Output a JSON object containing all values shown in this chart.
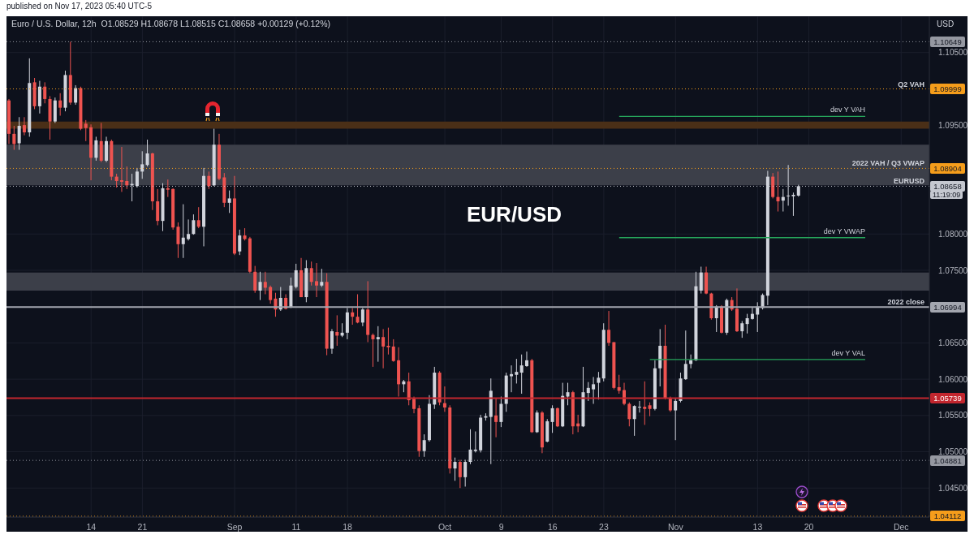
{
  "chart_data": {
    "type": "candlestick",
    "title": "Euro / U.S. Dollar, 12h",
    "subtitle": "O1.08529 H1.08678 L1.08515 C1.08658 +0.00129 (+0.12%)",
    "ylabel": "USD",
    "annotations": [
      "published on Nov 17, 2023 05:40 UTC-5",
      "EUR/USD",
      "11:19:09",
      {
        "text": "1.10649",
        "y": 1.10649
      },
      {
        "text": "1.09999",
        "y": 1.09999
      },
      {
        "text": "1.08904",
        "y": 1.08904
      },
      {
        "text": "1.08658",
        "y": 1.08658
      },
      {
        "text": "1.06994",
        "y": 1.06994
      },
      {
        "text": "1.05739",
        "y": 1.05739
      },
      {
        "text": "1.04881",
        "y": 1.04881
      },
      {
        "text": "1.04112",
        "y": 1.04112
      }
    ],
    "categories": [
      null,
      null,
      null,
      null,
      null,
      null,
      null,
      null,
      null,
      null,
      null,
      null,
      null,
      null,
      null,
      null,
      "14",
      null,
      null,
      null,
      null,
      null,
      null,
      null,
      null,
      null,
      "21",
      null,
      null,
      null,
      null,
      null,
      null,
      null,
      null,
      null,
      null,
      null,
      null,
      null,
      null,
      null,
      null,
      null,
      "Sep",
      null,
      null,
      null,
      null,
      null,
      null,
      null,
      null,
      null,
      null,
      null,
      "11",
      null,
      null,
      null,
      null,
      null,
      null,
      null,
      null,
      null,
      "18",
      null,
      null,
      null,
      null,
      null,
      null,
      null,
      null,
      null,
      null,
      null,
      null,
      null,
      null,
      null,
      null,
      null,
      null,
      "Oct",
      null,
      null,
      null,
      null,
      null,
      null,
      null,
      null,
      null,
      null,
      "9",
      null,
      null,
      null,
      null,
      null,
      null,
      null,
      null,
      null,
      "16",
      null,
      null,
      null,
      null,
      null,
      null,
      null,
      null,
      null,
      "23",
      null,
      null,
      null,
      null,
      null,
      null,
      null,
      null,
      null,
      null,
      null,
      null,
      null,
      "Nov",
      null,
      null,
      null,
      null,
      null,
      null,
      null,
      null,
      null,
      null,
      null,
      null,
      null,
      null,
      null,
      "13",
      null,
      null,
      null,
      null,
      null,
      null,
      null,
      null,
      null,
      "20",
      null,
      null,
      null,
      null,
      null,
      null,
      null,
      null,
      null,
      null,
      null,
      null,
      null,
      null,
      null,
      null,
      null,
      "Dec",
      null,
      null,
      null,
      null,
      null
    ],
    "ohlc": [
      [
        1.0984,
        1.0986,
        1.0924,
        1.0938
      ],
      [
        1.0938,
        1.0949,
        1.0916,
        1.0924
      ],
      [
        1.0925,
        1.0961,
        1.0916,
        1.0949
      ],
      [
        1.095,
        1.0961,
        1.0936,
        1.094
      ],
      [
        1.094,
        1.1042,
        1.0934,
        1.1008
      ],
      [
        1.1009,
        1.1015,
        1.0972,
        1.0976
      ],
      [
        1.0976,
        1.1011,
        1.0966,
        1.1003
      ],
      [
        1.1003,
        1.1009,
        1.098,
        1.0986
      ],
      [
        1.0986,
        1.099,
        1.093,
        1.0955
      ],
      [
        1.0955,
        1.0988,
        1.0953,
        1.0984
      ],
      [
        1.0984,
        1.0994,
        1.0963,
        1.0974
      ],
      [
        1.0974,
        1.1025,
        1.0969,
        1.1019
      ],
      [
        1.1019,
        1.1065,
        1.0978,
        1.0981
      ],
      [
        1.0981,
        1.1005,
        1.0978,
        1.1001
      ],
      [
        1.1001,
        1.1003,
        1.0943,
        1.0945
      ],
      [
        1.0952,
        1.0957,
        1.0928,
        1.0946
      ],
      [
        1.0947,
        1.0951,
        1.0874,
        1.0905
      ],
      [
        1.0905,
        1.0934,
        1.0901,
        1.0929
      ],
      [
        1.0928,
        1.0953,
        1.0899,
        1.0901
      ],
      [
        1.0901,
        1.0934,
        1.0899,
        1.0928
      ],
      [
        1.0928,
        1.093,
        1.0874,
        1.0879
      ],
      [
        1.0879,
        1.0883,
        1.0864,
        1.0873
      ],
      [
        1.0874,
        1.092,
        1.0858,
        1.0872
      ],
      [
        1.0873,
        1.0893,
        1.0862,
        1.0867
      ],
      [
        1.0867,
        1.0883,
        1.0845,
        1.0869
      ],
      [
        1.0866,
        1.0891,
        1.0864,
        1.0886
      ],
      [
        1.0886,
        1.0914,
        1.0876,
        1.0896
      ],
      [
        1.0895,
        1.093,
        1.0893,
        1.0911
      ],
      [
        1.0911,
        1.0912,
        1.0833,
        1.0845
      ],
      [
        1.0845,
        1.0862,
        1.0812,
        1.0818
      ],
      [
        1.0818,
        1.087,
        1.0804,
        1.0863
      ],
      [
        1.0863,
        1.0875,
        1.0851,
        1.0861
      ],
      [
        1.0862,
        1.0863,
        1.0806,
        1.0809
      ],
      [
        1.081,
        1.0816,
        1.0767,
        1.0786
      ],
      [
        1.0786,
        1.0841,
        1.0767,
        1.0795
      ],
      [
        1.0793,
        1.082,
        1.0791,
        1.08
      ],
      [
        1.08,
        1.0827,
        1.0799,
        1.0819
      ],
      [
        1.0819,
        1.0837,
        1.0808,
        1.081
      ],
      [
        1.081,
        1.0891,
        1.0783,
        1.088
      ],
      [
        1.088,
        1.0886,
        1.0862,
        1.0866
      ],
      [
        1.0867,
        1.0945,
        1.0866,
        1.0923
      ],
      [
        1.0923,
        1.0938,
        1.0874,
        1.0876
      ],
      [
        1.0878,
        1.0884,
        1.0837,
        1.0843
      ],
      [
        1.0843,
        1.086,
        1.0829,
        1.0849
      ],
      [
        1.0849,
        1.088,
        1.0771,
        1.0773
      ],
      [
        1.0776,
        1.0806,
        1.0771,
        1.0798
      ],
      [
        1.0798,
        1.0808,
        1.0791,
        1.0793
      ],
      [
        1.0794,
        1.0796,
        1.0746,
        1.0748
      ],
      [
        1.0748,
        1.0756,
        1.0719,
        1.0722
      ],
      [
        1.0722,
        1.0748,
        1.0709,
        1.0734
      ],
      [
        1.0734,
        1.0748,
        1.0717,
        1.0726
      ],
      [
        1.0727,
        1.0729,
        1.0704,
        1.0709
      ],
      [
        1.0711,
        1.0719,
        1.0686,
        1.0696
      ],
      [
        1.0696,
        1.0727,
        1.0694,
        1.0712
      ],
      [
        1.0712,
        1.0717,
        1.0696,
        1.0697
      ],
      [
        1.0699,
        1.074,
        1.0698,
        1.0729
      ],
      [
        1.0727,
        1.0759,
        1.0725,
        1.075
      ],
      [
        1.075,
        1.0767,
        1.0713,
        1.0713
      ],
      [
        1.0713,
        1.0764,
        1.0706,
        1.0753
      ],
      [
        1.0753,
        1.0762,
        1.0729,
        1.0734
      ],
      [
        1.0735,
        1.076,
        1.0713,
        1.0729
      ],
      [
        1.0729,
        1.0752,
        1.0727,
        1.0734
      ],
      [
        1.0734,
        1.0746,
        1.0633,
        1.0642
      ],
      [
        1.0642,
        1.0669,
        1.0635,
        1.0666
      ],
      [
        1.0665,
        1.0688,
        1.0646,
        1.066
      ],
      [
        1.066,
        1.0677,
        1.0658,
        1.0664
      ],
      [
        1.0664,
        1.0698,
        1.0655,
        1.0692
      ],
      [
        1.0692,
        1.0698,
        1.0675,
        1.0686
      ],
      [
        1.0686,
        1.0717,
        1.0677,
        1.0678
      ],
      [
        1.0678,
        1.0698,
        1.0673,
        1.0696
      ],
      [
        1.0696,
        1.0735,
        1.0651,
        1.0661
      ],
      [
        1.0661,
        1.0663,
        1.0617,
        1.0655
      ],
      [
        1.0655,
        1.0673,
        1.0624,
        1.0658
      ],
      [
        1.0658,
        1.0669,
        1.0615,
        1.0645
      ],
      [
        1.0646,
        1.0671,
        1.0634,
        1.0644
      ],
      [
        1.0645,
        1.0655,
        1.0624,
        1.0625
      ],
      [
        1.0626,
        1.0644,
        1.0576,
        1.0593
      ],
      [
        1.0593,
        1.0599,
        1.0582,
        1.0597
      ],
      [
        1.0597,
        1.0609,
        1.0564,
        1.0571
      ],
      [
        1.0573,
        1.0576,
        1.0553,
        1.0559
      ],
      [
        1.056,
        1.0564,
        1.0493,
        1.0501
      ],
      [
        1.0501,
        1.0524,
        1.0493,
        1.0516
      ],
      [
        1.0516,
        1.0578,
        1.0514,
        1.0566
      ],
      [
        1.0565,
        1.0617,
        1.0559,
        1.0609
      ],
      [
        1.0609,
        1.0611,
        1.0564,
        1.0568
      ],
      [
        1.0567,
        1.059,
        1.0555,
        1.0561
      ],
      [
        1.0561,
        1.0564,
        1.047,
        1.0477
      ],
      [
        1.0477,
        1.0492,
        1.046,
        1.0486
      ],
      [
        1.0486,
        1.0489,
        1.045,
        1.0465
      ],
      [
        1.0465,
        1.0489,
        1.0452,
        1.0486
      ],
      [
        1.0486,
        1.0531,
        1.0483,
        1.0503
      ],
      [
        1.0501,
        1.0528,
        1.0499,
        1.0503
      ],
      [
        1.0502,
        1.0551,
        1.0499,
        1.0547
      ],
      [
        1.0547,
        1.0553,
        1.0543,
        1.0549
      ],
      [
        1.0548,
        1.0601,
        1.0483,
        1.0584
      ],
      [
        1.055,
        1.0574,
        1.052,
        1.0541
      ],
      [
        1.0541,
        1.0576,
        1.0534,
        1.0566
      ],
      [
        1.0566,
        1.0609,
        1.0555,
        1.0605
      ],
      [
        1.0604,
        1.0619,
        1.0582,
        1.0607
      ],
      [
        1.0606,
        1.0628,
        1.0594,
        1.061
      ],
      [
        1.0609,
        1.0634,
        1.058,
        1.0619
      ],
      [
        1.0618,
        1.0638,
        1.0617,
        1.0626
      ],
      [
        1.0626,
        1.0628,
        1.0526,
        1.0527
      ],
      [
        1.0527,
        1.0557,
        1.0526,
        1.0554
      ],
      [
        1.0554,
        1.0556,
        1.0498,
        1.0506
      ],
      [
        1.0514,
        1.0545,
        1.0513,
        1.0542
      ],
      [
        1.0541,
        1.0564,
        1.0526,
        1.056
      ],
      [
        1.056,
        1.0561,
        1.0534,
        1.0535
      ],
      [
        1.0535,
        1.0595,
        1.0534,
        1.0577
      ],
      [
        1.0576,
        1.0595,
        1.0564,
        1.0582
      ],
      [
        1.0582,
        1.0584,
        1.0524,
        1.0535
      ],
      [
        1.0539,
        1.0551,
        1.0527,
        1.0535
      ],
      [
        1.0535,
        1.0617,
        1.0534,
        1.0582
      ],
      [
        1.0581,
        1.0596,
        1.057,
        1.0588
      ],
      [
        1.0586,
        1.0603,
        1.0566,
        1.0593
      ],
      [
        1.0595,
        1.061,
        1.0572,
        1.0602
      ],
      [
        1.0601,
        1.0677,
        1.0597,
        1.0668
      ],
      [
        1.0668,
        1.0694,
        1.0646,
        1.065
      ],
      [
        1.0651,
        1.0651,
        1.0586,
        1.0588
      ],
      [
        1.0589,
        1.0606,
        1.058,
        1.0584
      ],
      [
        1.0585,
        1.0595,
        1.0564,
        1.0566
      ],
      [
        1.0566,
        1.0568,
        1.0535,
        1.0545
      ],
      [
        1.0545,
        1.0564,
        1.0522,
        1.0563
      ],
      [
        1.0561,
        1.057,
        1.0554,
        1.0562
      ],
      [
        1.0562,
        1.0597,
        1.0537,
        1.0559
      ],
      [
        1.0564,
        1.0568,
        1.0549,
        1.0559
      ],
      [
        1.0559,
        1.0626,
        1.0557,
        1.0615
      ],
      [
        1.0615,
        1.0669,
        1.059,
        1.0646
      ],
      [
        1.0646,
        1.0675,
        1.0572,
        1.0574
      ],
      [
        1.0574,
        1.0576,
        1.0555,
        1.0557
      ],
      [
        1.0557,
        1.0574,
        1.0516,
        1.057
      ],
      [
        1.057,
        1.0609,
        1.0568,
        1.0601
      ],
      [
        1.06,
        1.0667,
        1.0599,
        1.0621
      ],
      [
        1.0621,
        1.0634,
        1.0615,
        1.0626
      ],
      [
        1.0626,
        1.0748,
        1.0625,
        1.0728
      ],
      [
        1.0722,
        1.0755,
        1.0718,
        1.0747
      ],
      [
        1.0747,
        1.0755,
        1.0717,
        1.0718
      ],
      [
        1.0718,
        1.0719,
        1.0682,
        1.0684
      ],
      [
        1.0684,
        1.0702,
        1.0665,
        1.07
      ],
      [
        1.07,
        1.0702,
        1.0663,
        1.0664
      ],
      [
        1.0664,
        1.0711,
        1.0661,
        1.0709
      ],
      [
        1.0709,
        1.0713,
        1.0694,
        1.0696
      ],
      [
        1.0697,
        1.0725,
        1.0665,
        1.0666
      ],
      [
        1.0666,
        1.068,
        1.0657,
        1.0677
      ],
      [
        1.0676,
        1.069,
        1.0663,
        1.0684
      ],
      [
        1.0683,
        1.0699,
        1.0682,
        1.069
      ],
      [
        1.0689,
        1.0706,
        1.0665,
        1.07
      ],
      [
        1.0698,
        1.0718,
        1.0696,
        1.0716
      ],
      [
        1.0715,
        1.0887,
        1.0702,
        1.0879
      ],
      [
        1.0879,
        1.0884,
        1.0849,
        1.0851
      ],
      [
        1.0851,
        1.0886,
        1.0831,
        1.0845
      ],
      [
        1.0846,
        1.0862,
        1.0831,
        1.0851
      ],
      [
        1.0852,
        1.0895,
        1.0839,
        1.0853
      ],
      [
        1.0852,
        1.0857,
        1.0825,
        1.0854
      ],
      [
        1.08529,
        1.08678,
        1.08515,
        1.08658
      ],
      null,
      null,
      null,
      null,
      null,
      null,
      null,
      null,
      null,
      null,
      null,
      null,
      null,
      null,
      null,
      null,
      null,
      null,
      null,
      null,
      null,
      null,
      null,
      null,
      null
    ],
    "series": [
      {
        "type": "line",
        "name": "dev Y VAH",
        "color": "#26a65b",
        "values": [
          null,
          null,
          null,
          null,
          null,
          null,
          null,
          null,
          null,
          null,
          null,
          null,
          null,
          null,
          null,
          null,
          null,
          null,
          null,
          null,
          null,
          null,
          null,
          null,
          null,
          null,
          null,
          null,
          null,
          null,
          null,
          null,
          null,
          null,
          null,
          null,
          null,
          null,
          null,
          null,
          null,
          null,
          null,
          null,
          null,
          null,
          null,
          null,
          null,
          null,
          null,
          null,
          null,
          null,
          null,
          null,
          null,
          null,
          null,
          null,
          null,
          null,
          null,
          null,
          null,
          null,
          null,
          null,
          null,
          null,
          null,
          null,
          null,
          null,
          null,
          null,
          null,
          null,
          null,
          null,
          null,
          null,
          null,
          null,
          null,
          null,
          null,
          null,
          null,
          null,
          null,
          null,
          null,
          null,
          null,
          null,
          null,
          null,
          null,
          null,
          null,
          null,
          null,
          null,
          null,
          null,
          null,
          null,
          null,
          null,
          null,
          null,
          null,
          null,
          null,
          null,
          null,
          null,
          null,
          1.0962,
          1.0962,
          1.0962,
          1.0962,
          1.0962,
          1.0962,
          1.0962,
          1.0962,
          1.0962,
          1.0962,
          1.0962,
          1.0962,
          1.0962,
          1.0962,
          1.0962,
          1.0962,
          1.0962,
          1.0962,
          1.0962,
          1.0962,
          1.0962,
          1.0962,
          1.0962,
          1.0962,
          1.0962,
          1.0962,
          1.0962,
          1.0962,
          1.0962,
          1.0962,
          1.0962,
          1.0962,
          1.0962,
          1.0962,
          1.0962,
          1.0962,
          1.0962,
          1.0962,
          1.0962,
          1.0962,
          1.0962,
          1.0962,
          1.0962,
          1.0962,
          1.0962,
          1.0962,
          1.0962,
          1.0962,
          1.0962,
          null,
          null,
          null,
          null,
          null,
          null,
          null,
          null,
          null,
          null,
          null,
          null
        ]
      },
      {
        "type": "line",
        "name": "dev Y VWAP",
        "color": "#26a65b",
        "values": [
          null,
          null,
          null,
          null,
          null,
          null,
          null,
          null,
          null,
          null,
          null,
          null,
          null,
          null,
          null,
          null,
          null,
          null,
          null,
          null,
          null,
          null,
          null,
          null,
          null,
          null,
          null,
          null,
          null,
          null,
          null,
          null,
          null,
          null,
          null,
          null,
          null,
          null,
          null,
          null,
          null,
          null,
          null,
          null,
          null,
          null,
          null,
          null,
          null,
          null,
          null,
          null,
          null,
          null,
          null,
          null,
          null,
          null,
          null,
          null,
          null,
          null,
          null,
          null,
          null,
          null,
          null,
          null,
          null,
          null,
          null,
          null,
          null,
          null,
          null,
          null,
          null,
          null,
          null,
          null,
          null,
          null,
          null,
          null,
          null,
          null,
          null,
          null,
          null,
          null,
          null,
          null,
          null,
          null,
          null,
          null,
          null,
          null,
          null,
          null,
          null,
          null,
          null,
          null,
          null,
          null,
          null,
          null,
          null,
          null,
          null,
          null,
          null,
          null,
          null,
          null,
          null,
          null,
          null,
          1.0795,
          1.0795,
          1.0795,
          1.0795,
          1.0795,
          1.0795,
          1.0795,
          1.0795,
          1.0795,
          1.0795,
          1.0795,
          1.0795,
          1.0795,
          1.0795,
          1.0795,
          1.0795,
          1.0795,
          1.0795,
          1.0795,
          1.0795,
          1.0795,
          1.0795,
          1.0795,
          1.0795,
          1.0795,
          1.0795,
          1.0795,
          1.0795,
          1.0795,
          1.0795,
          1.0795,
          1.0795,
          1.0795,
          1.0795,
          1.0795,
          1.0795,
          1.0795,
          1.0795,
          1.0795,
          1.0795,
          1.0795,
          1.0795,
          1.0795,
          1.0795,
          1.0795,
          1.0795,
          1.0795,
          1.0795,
          1.0795,
          null,
          null,
          null,
          null,
          null,
          null,
          null,
          null,
          null,
          null,
          null,
          null
        ]
      },
      {
        "type": "line",
        "name": "dev Y VAL",
        "color": "#26a65b",
        "values": [
          null,
          null,
          null,
          null,
          null,
          null,
          null,
          null,
          null,
          null,
          null,
          null,
          null,
          null,
          null,
          null,
          null,
          null,
          null,
          null,
          null,
          null,
          null,
          null,
          null,
          null,
          null,
          null,
          null,
          null,
          null,
          null,
          null,
          null,
          null,
          null,
          null,
          null,
          null,
          null,
          null,
          null,
          null,
          null,
          null,
          null,
          null,
          null,
          null,
          null,
          null,
          null,
          null,
          null,
          null,
          null,
          null,
          null,
          null,
          null,
          null,
          null,
          null,
          null,
          null,
          null,
          null,
          null,
          null,
          null,
          null,
          null,
          null,
          null,
          null,
          null,
          null,
          null,
          null,
          null,
          null,
          null,
          null,
          null,
          null,
          null,
          null,
          null,
          null,
          null,
          null,
          null,
          null,
          null,
          null,
          null,
          null,
          null,
          null,
          null,
          null,
          null,
          null,
          null,
          null,
          null,
          null,
          null,
          null,
          null,
          null,
          null,
          null,
          null,
          null,
          null,
          null,
          null,
          null,
          null,
          null,
          null,
          null,
          null,
          null,
          1.0627,
          1.0627,
          1.0627,
          1.0627,
          1.0627,
          1.0627,
          1.0627,
          1.0627,
          1.0627,
          1.0627,
          1.0627,
          1.0627,
          1.0627,
          1.0627,
          1.0627,
          1.0627,
          1.0627,
          1.0627,
          1.0627,
          1.0627,
          1.0627,
          1.0627,
          1.0627,
          1.0627,
          1.0627,
          1.0627,
          1.0627,
          1.0627,
          1.0627,
          1.0627,
          1.0627,
          1.0627,
          1.0627,
          1.0627,
          1.0627,
          1.0627,
          1.0627,
          1.0627,
          1.0627,
          1.0627,
          1.0627,
          1.0627,
          1.0627,
          null,
          null,
          null,
          null,
          null,
          null,
          null,
          null,
          null,
          null,
          null,
          null
        ]
      }
    ],
    "ylim": [
      1.041,
      1.11
    ],
    "yticks": [
      {
        "value": 1.045,
        "label": "1.04500"
      },
      {
        "value": 1.05,
        "label": "1.05000"
      },
      {
        "value": 1.055,
        "label": "1.05500"
      },
      {
        "value": 1.06,
        "label": "1.06000"
      },
      {
        "value": 1.065,
        "label": "1.06500"
      },
      {
        "value": 1.075,
        "label": "1.07500"
      },
      {
        "value": 1.08,
        "label": "1.08000"
      },
      {
        "value": 1.095,
        "label": "1.09500"
      },
      {
        "value": 1.105,
        "label": "1.10500"
      }
    ],
    "ref_lines": [
      {
        "axis": "y",
        "value": 1.10649,
        "color": "#9598a1",
        "line_style": "dotted"
      },
      {
        "axis": "y",
        "value": 1.09999,
        "label": "Q2 VAH",
        "color": "#f59d1b",
        "line_style": "dotted"
      },
      {
        "axis": "y",
        "value": 1.08904,
        "label": "2022 VAH / Q3 VWAP",
        "color": "#f59d1b",
        "line_style": "dotted"
      },
      {
        "axis": "y",
        "value": 1.08658,
        "label": "EURUSD",
        "color": "#c5c8d0",
        "line_style": "dotted"
      },
      {
        "axis": "y",
        "value": 1.06994,
        "label": "2022 close",
        "color": "#a3a6af",
        "line_style": "solid"
      },
      {
        "axis": "y",
        "value": 1.05739,
        "color": "#c2262e",
        "line_style": "solid"
      },
      {
        "axis": "y",
        "value": 1.04881,
        "color": "#9598a1",
        "line_style": "dotted"
      },
      {
        "axis": "y",
        "value": 1.04112,
        "color": "#f59d1b",
        "line_style": "dotted"
      }
    ],
    "bands": [
      {
        "axis": "y",
        "from": 1.0945,
        "to": 1.0955,
        "color": "#4a2f17"
      },
      {
        "axis": "y",
        "from": 1.0867,
        "to": 1.0923,
        "color": "#3c3f49"
      },
      {
        "axis": "y",
        "from": 1.0722,
        "to": 1.0747,
        "color": "#3c3f49"
      }
    ],
    "grid": true
  }
}
